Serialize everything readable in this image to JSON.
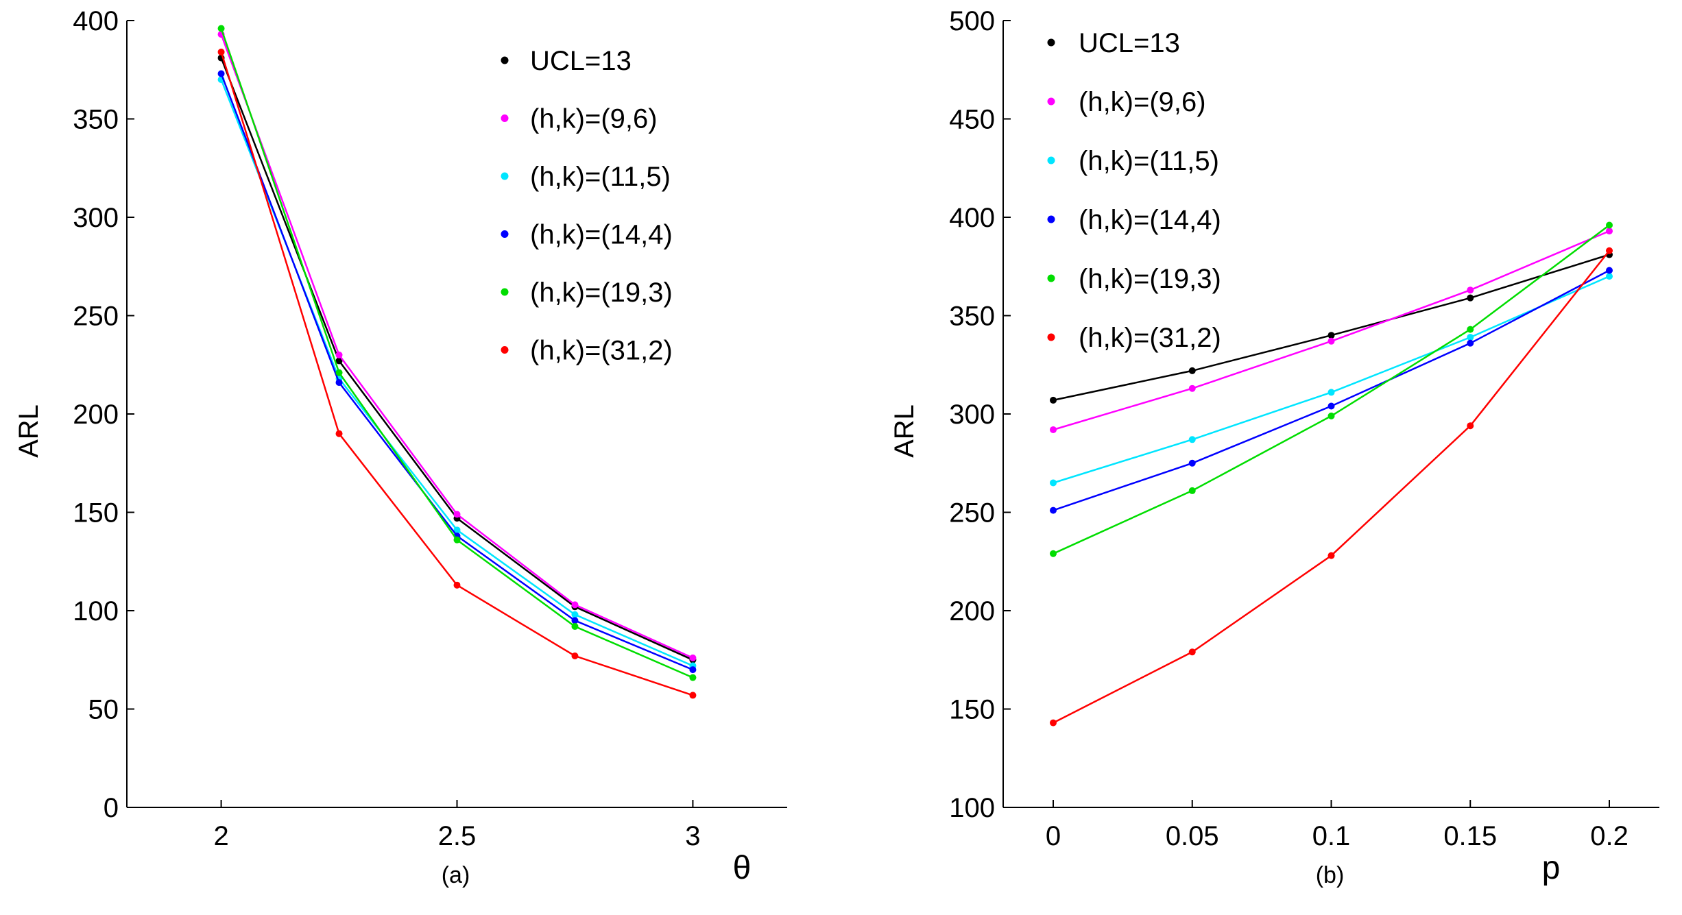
{
  "chart_data": [
    {
      "type": "line",
      "caption": "(a)",
      "xlabel": "θ",
      "ylabel": "ARL",
      "x": [
        2,
        2.25,
        2.5,
        2.75,
        3
      ],
      "xlim": [
        1.8,
        3.2
      ],
      "ylim": [
        0,
        400
      ],
      "xticks": [
        2,
        2.5,
        3
      ],
      "xtick_labels": [
        "2",
        "2.5",
        "3"
      ],
      "yticks": [
        0,
        50,
        100,
        150,
        200,
        250,
        300,
        350,
        400
      ],
      "ytick_labels": [
        "0",
        "50",
        "100",
        "150",
        "200",
        "250",
        "300",
        "350",
        "400"
      ],
      "legend_position": "top-right",
      "grid": false,
      "series": [
        {
          "name": "UCL=13",
          "color": "#000000",
          "values": [
            381,
            227,
            147,
            102,
            75
          ]
        },
        {
          "name": "(h,k)=(9,6)",
          "color": "#ff00ff",
          "values": [
            393,
            230,
            149,
            103,
            76
          ]
        },
        {
          "name": "(h,k)=(11,5)",
          "color": "#00e5ff",
          "values": [
            370,
            218,
            141,
            98,
            72
          ]
        },
        {
          "name": "(h,k)=(14,4)",
          "color": "#0000ff",
          "values": [
            373,
            216,
            138,
            95,
            70
          ]
        },
        {
          "name": "(h,k)=(19,3)",
          "color": "#00dd00",
          "values": [
            396,
            221,
            136,
            92,
            66
          ]
        },
        {
          "name": "(h,k)=(31,2)",
          "color": "#ff0000",
          "values": [
            384,
            190,
            113,
            77,
            57
          ]
        }
      ]
    },
    {
      "type": "line",
      "caption": "(b)",
      "xlabel": "p",
      "ylabel": "ARL",
      "x": [
        0,
        0.05,
        0.1,
        0.15,
        0.2
      ],
      "xlim": [
        -0.018,
        0.218
      ],
      "ylim": [
        100,
        500
      ],
      "xticks": [
        0,
        0.05,
        0.1,
        0.15,
        0.2
      ],
      "xtick_labels": [
        "0",
        "0.05",
        "0.1",
        "0.15",
        "0.2"
      ],
      "yticks": [
        100,
        150,
        200,
        250,
        300,
        350,
        400,
        450,
        500
      ],
      "ytick_labels": [
        "100",
        "150",
        "200",
        "250",
        "300",
        "350",
        "400",
        "450",
        "500"
      ],
      "legend_position": "top-left",
      "grid": false,
      "series": [
        {
          "name": "UCL=13",
          "color": "#000000",
          "values": [
            307,
            322,
            340,
            359,
            381
          ]
        },
        {
          "name": "(h,k)=(9,6)",
          "color": "#ff00ff",
          "values": [
            292,
            313,
            337,
            363,
            393
          ]
        },
        {
          "name": "(h,k)=(11,5)",
          "color": "#00e5ff",
          "values": [
            265,
            287,
            311,
            339,
            370
          ]
        },
        {
          "name": "(h,k)=(14,4)",
          "color": "#0000ff",
          "values": [
            251,
            275,
            304,
            336,
            373
          ]
        },
        {
          "name": "(h,k)=(19,3)",
          "color": "#00dd00",
          "values": [
            229,
            261,
            299,
            343,
            396
          ]
        },
        {
          "name": "(h,k)=(31,2)",
          "color": "#ff0000",
          "values": [
            143,
            179,
            228,
            294,
            383
          ]
        }
      ]
    }
  ]
}
